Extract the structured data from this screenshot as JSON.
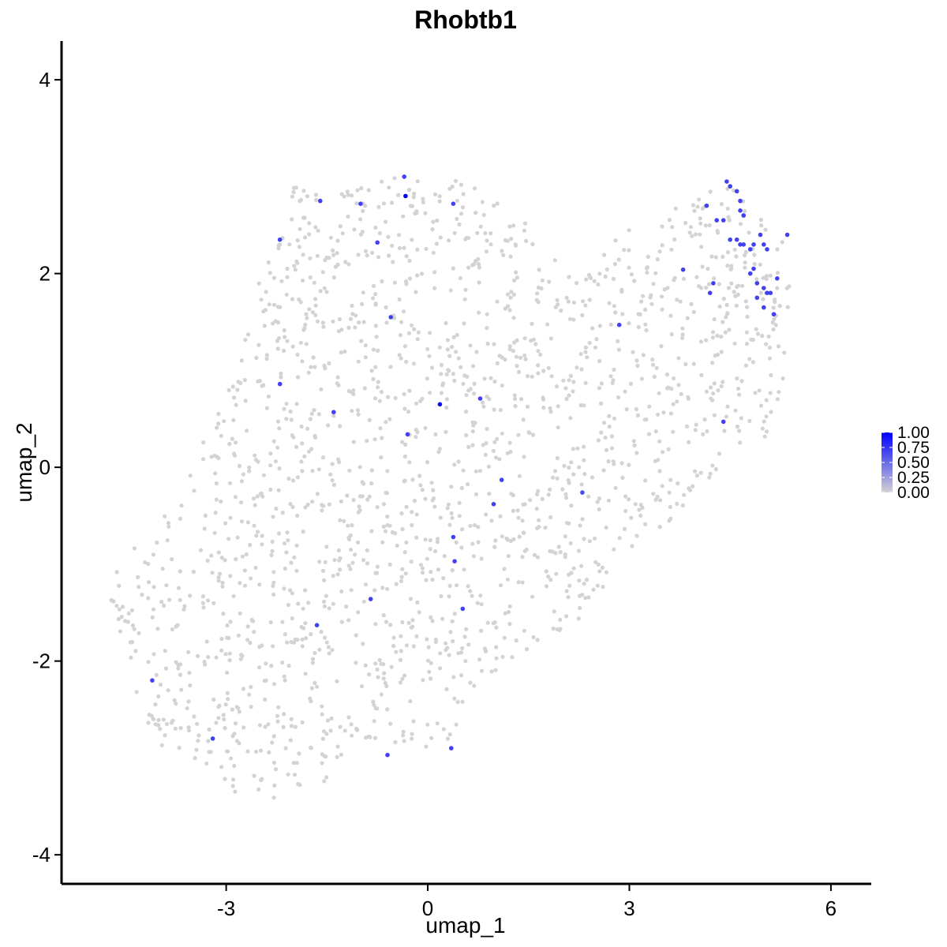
{
  "chart_data": {
    "type": "scatter",
    "title": "Rhobtb1",
    "xlabel": "umap_1",
    "ylabel": "umap_2",
    "xlim": [
      -5.45,
      6.6
    ],
    "ylim": [
      -4.3,
      4.4
    ],
    "x_ticks": [
      -3,
      0,
      3,
      6
    ],
    "y_ticks": [
      -4,
      -2,
      0,
      2,
      4
    ],
    "x_tick_labels": [
      "-3",
      "0",
      "3",
      "6"
    ],
    "y_tick_labels": [
      "-4",
      "-2",
      "0",
      "2",
      "4"
    ],
    "grid": false,
    "legend": {
      "placement": "right",
      "type": "colorbar",
      "min": 0,
      "max": 1,
      "ticks": [
        1.0,
        0.75,
        0.5,
        0.25,
        0.0
      ],
      "tick_labels": [
        "1.00",
        "0.75",
        "0.50",
        "0.25",
        "0.00"
      ],
      "low_color": "#d3d3d3",
      "high_color": "#0000ff"
    },
    "background_cells": {
      "description_of_extent": "cells with zero expression",
      "color": "#d3d3d3",
      "count": 1800,
      "outline_umap_1": [
        -4.8,
        -3.6,
        -2.0,
        -0.8,
        0.5,
        1.5,
        2.2,
        3.0,
        4.5,
        5.0,
        5.4,
        5.4,
        4.8,
        4.2,
        3.4,
        2.7,
        2.2,
        1.5,
        0.8,
        0.2,
        -0.7,
        -1.4,
        -2.3,
        -3.2,
        -4.1,
        -4.5
      ],
      "outline_umap_2": [
        -1.2,
        -0.2,
        2.9,
        3.0,
        3.0,
        2.5,
        1.9,
        2.5,
        3.0,
        2.6,
        2.2,
        0.4,
        0.2,
        -0.1,
        -0.7,
        -1.3,
        -1.6,
        -1.9,
        -2.2,
        -3.0,
        -2.8,
        -3.2,
        -3.5,
        -3.3,
        -2.8,
        -2.0
      ]
    },
    "expressing_cells": {
      "x": [
        -0.33,
        0.18,
        -0.35,
        -1.6,
        -1.0,
        0.38,
        -2.2,
        -0.75,
        -0.55,
        -2.2,
        -1.4,
        -0.3,
        0.78,
        1.1,
        0.98,
        0.38,
        0.4,
        2.3,
        -0.85,
        0.52,
        -1.65,
        -4.1,
        -3.2,
        -0.6,
        0.35,
        2.85,
        3.8,
        4.15,
        4.3,
        4.2,
        4.25,
        4.4,
        4.45,
        4.5,
        4.6,
        4.65,
        4.65,
        4.7,
        4.5,
        4.4,
        4.65,
        4.8,
        4.85,
        4.95,
        5.0,
        5.05,
        5.2,
        4.9,
        5.0,
        5.05,
        4.85,
        4.9,
        5.0,
        5.1,
        5.15,
        5.35,
        4.8,
        4.6,
        4.7,
        4.7
      ],
      "y": [
        2.8,
        0.65,
        3.0,
        2.75,
        2.72,
        2.72,
        2.35,
        2.32,
        1.55,
        0.86,
        0.57,
        0.34,
        0.71,
        -0.13,
        -0.38,
        -0.72,
        -0.97,
        -0.26,
        -1.36,
        -1.46,
        -1.63,
        -2.2,
        -2.8,
        -2.97,
        -2.9,
        1.47,
        2.04,
        2.7,
        2.55,
        1.8,
        1.9,
        0.47,
        2.95,
        2.9,
        2.85,
        2.75,
        2.65,
        2.6,
        2.35,
        2.55,
        2.3,
        2.25,
        2.3,
        2.4,
        2.3,
        2.25,
        1.95,
        1.9,
        1.85,
        1.8,
        2.05,
        1.75,
        1.65,
        1.8,
        1.58,
        2.4,
        2.0,
        2.35,
        2.3,
        2.6
      ],
      "expression": [
        1.0,
        0.95,
        0.7,
        0.7,
        0.7,
        0.7,
        0.7,
        0.7,
        0.7,
        0.7,
        0.7,
        0.7,
        0.7,
        0.7,
        0.7,
        0.7,
        0.7,
        0.65,
        0.7,
        0.7,
        0.7,
        0.7,
        0.7,
        0.7,
        0.7,
        0.7,
        0.7,
        0.7,
        0.7,
        0.7,
        0.7,
        0.7,
        0.7,
        0.7,
        0.7,
        0.7,
        0.7,
        0.7,
        0.7,
        0.7,
        0.7,
        0.7,
        0.7,
        0.7,
        0.7,
        0.7,
        0.7,
        0.7,
        0.7,
        0.7,
        0.7,
        0.7,
        0.7,
        0.7,
        0.7,
        0.7,
        0.7,
        0.7,
        0.7,
        0.7
      ]
    }
  }
}
